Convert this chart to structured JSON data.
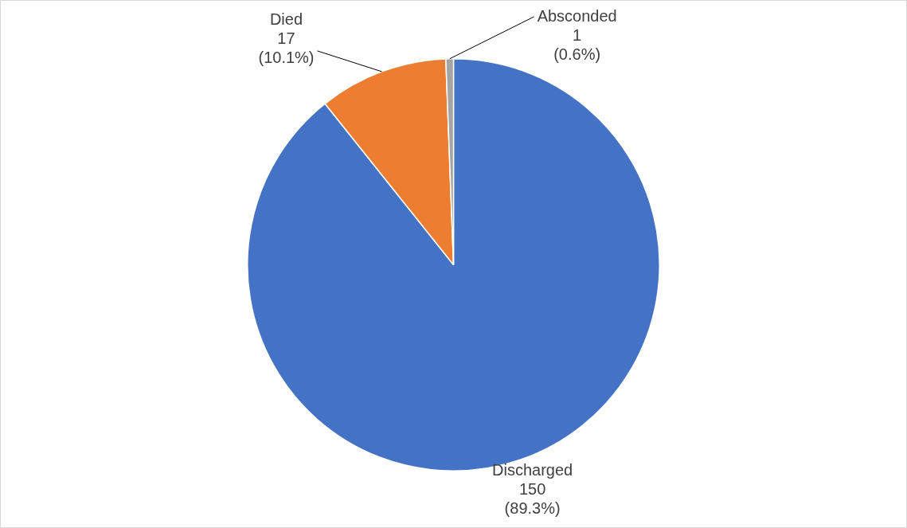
{
  "chart_data": {
    "type": "pie",
    "categories": [
      "Discharged",
      "Died",
      "Absconded"
    ],
    "values": [
      150,
      17,
      1
    ],
    "colors": [
      "#4472c4",
      "#ed7d31",
      "#a5a5a5"
    ],
    "value_labels": [
      "150\n(89.3%)",
      "17\n(10.1%)",
      "1\n(0.6%)"
    ],
    "legend": false
  }
}
